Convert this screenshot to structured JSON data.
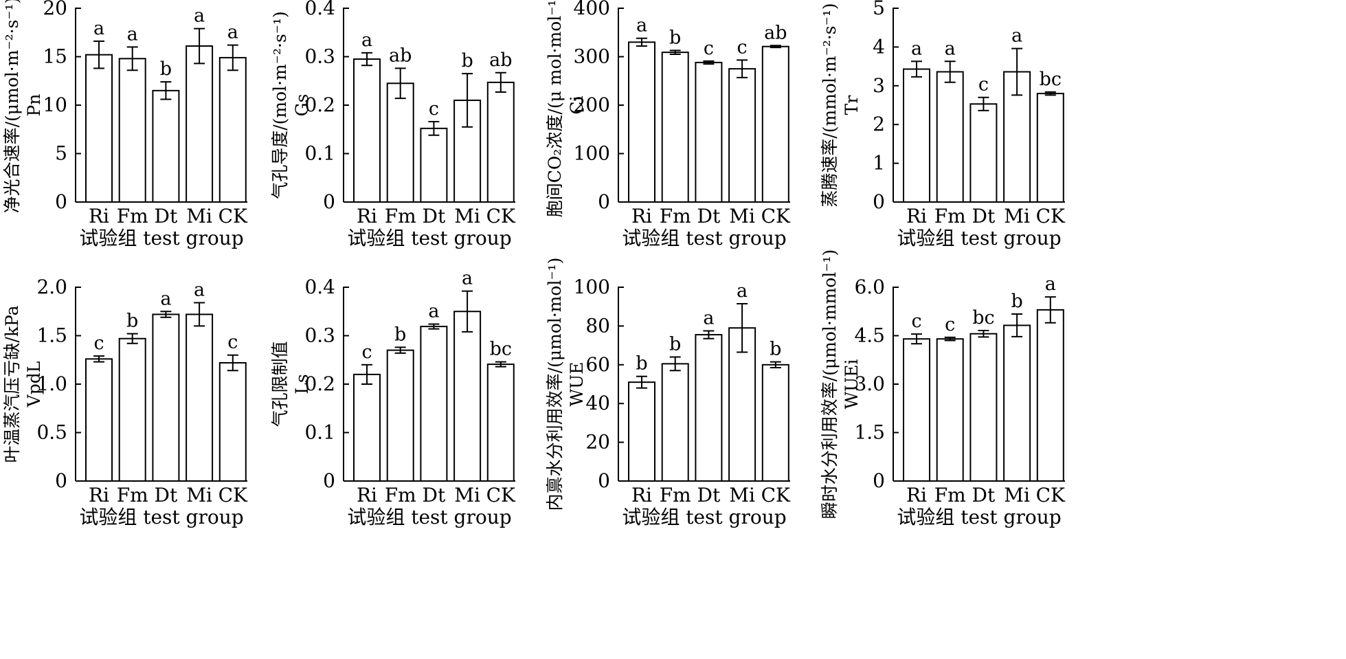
{
  "chart_data": [
    {
      "type": "bar",
      "categories": [
        "Ri",
        "Fm",
        "Dt",
        "Mi",
        "CK"
      ],
      "values": [
        15.2,
        14.8,
        11.5,
        16.1,
        14.9
      ],
      "errors": [
        1.4,
        1.2,
        0.9,
        1.8,
        1.3
      ],
      "letters": [
        "a",
        "a",
        "b",
        "a",
        "a"
      ],
      "ylim": [
        0,
        20
      ],
      "yticks": [
        "0",
        "5",
        "10",
        "15",
        "20"
      ],
      "xlabel": "试验组 test group",
      "ylabel": [
        "净光合速率/(μmol·m⁻²·s⁻¹)",
        "Pn"
      ]
    },
    {
      "type": "bar",
      "categories": [
        "Ri",
        "Fm",
        "Dt",
        "Mi",
        "CK"
      ],
      "values": [
        0.295,
        0.245,
        0.152,
        0.21,
        0.247
      ],
      "errors": [
        0.013,
        0.031,
        0.014,
        0.055,
        0.02
      ],
      "letters": [
        "a",
        "ab",
        "c",
        "b",
        "ab"
      ],
      "ylim": [
        0,
        0.4
      ],
      "yticks": [
        "0",
        "0.1",
        "0.2",
        "0.3",
        "0.4"
      ],
      "xlabel": "试验组 test group",
      "ylabel": [
        "气孔导度/(mol·m⁻²·s⁻¹)",
        "Gs"
      ]
    },
    {
      "type": "bar",
      "categories": [
        "Ri",
        "Fm",
        "Dt",
        "Mi",
        "CK"
      ],
      "values": [
        330,
        309,
        288,
        275,
        321
      ],
      "errors": [
        8,
        4,
        3,
        18,
        2
      ],
      "letters": [
        "a",
        "b",
        "c",
        "c",
        "ab"
      ],
      "ylim": [
        0,
        400
      ],
      "yticks": [
        "0",
        "100",
        "200",
        "300",
        "400"
      ],
      "xlabel": "试验组 test group",
      "ylabel": [
        "胞间CO₂浓度/(μ mol·mol⁻¹)",
        "Ci"
      ]
    },
    {
      "type": "bar",
      "categories": [
        "Ri",
        "Fm",
        "Dt",
        "Mi",
        "CK"
      ],
      "values": [
        3.43,
        3.36,
        2.53,
        3.36,
        2.8
      ],
      "errors": [
        0.2,
        0.27,
        0.17,
        0.6,
        0.04
      ],
      "letters": [
        "a",
        "a",
        "c",
        "a",
        "bc"
      ],
      "ylim": [
        0,
        5
      ],
      "yticks": [
        "0",
        "1",
        "2",
        "3",
        "4",
        "5"
      ],
      "xlabel": "试验组 test group",
      "ylabel": [
        "蒸腾速率/(mmol·m⁻²·s⁻¹)",
        "Tr"
      ]
    },
    {
      "type": "bar",
      "categories": [
        "Ri",
        "Fm",
        "Dt",
        "Mi",
        "CK"
      ],
      "values": [
        1.26,
        1.47,
        1.72,
        1.72,
        1.22
      ],
      "errors": [
        0.03,
        0.05,
        0.03,
        0.12,
        0.08
      ],
      "letters": [
        "c",
        "b",
        "a",
        "a",
        "c"
      ],
      "ylim": [
        0,
        2
      ],
      "yticks": [
        "0",
        "0.5",
        "1.0",
        "1.5",
        "2.0"
      ],
      "xlabel": "试验组 test group",
      "ylabel": [
        "叶温蒸汽压亏缺/kPa",
        "VpdL"
      ]
    },
    {
      "type": "bar",
      "categories": [
        "Ri",
        "Fm",
        "Dt",
        "Mi",
        "CK"
      ],
      "values": [
        0.22,
        0.27,
        0.319,
        0.35,
        0.241
      ],
      "errors": [
        0.02,
        0.006,
        0.005,
        0.042,
        0.005
      ],
      "letters": [
        "c",
        "b",
        "a",
        "a",
        "bc"
      ],
      "ylim": [
        0,
        0.4
      ],
      "yticks": [
        "0",
        "0.1",
        "0.2",
        "0.3",
        "0.4"
      ],
      "xlabel": "试验组 test group",
      "ylabel": [
        "气孔限制值",
        "Ls"
      ]
    },
    {
      "type": "bar",
      "categories": [
        "Ri",
        "Fm",
        "Dt",
        "Mi",
        "CK"
      ],
      "values": [
        51,
        60.5,
        75.5,
        79,
        60
      ],
      "errors": [
        3,
        3.5,
        2,
        12.5,
        1.5
      ],
      "letters": [
        "b",
        "b",
        "a",
        "a",
        "b"
      ],
      "ylim": [
        0,
        100
      ],
      "yticks": [
        "0",
        "20",
        "40",
        "60",
        "80",
        "100"
      ],
      "xlabel": "试验组 test group",
      "ylabel": [
        "内禀水分利用效率/(μmol·mol⁻¹)",
        "WUE"
      ]
    },
    {
      "type": "bar",
      "categories": [
        "Ri",
        "Fm",
        "Dt",
        "Mi",
        "CK"
      ],
      "values": [
        4.4,
        4.4,
        4.56,
        4.82,
        5.3
      ],
      "errors": [
        0.15,
        0.05,
        0.1,
        0.35,
        0.4
      ],
      "letters": [
        "c",
        "c",
        "bc",
        "b",
        "a"
      ],
      "ylim": [
        0,
        6
      ],
      "yticks": [
        "0",
        "1.5",
        "3.0",
        "4.5",
        "6.0"
      ],
      "xlabel": "试验组 test group",
      "ylabel": [
        "瞬时水分利用效率/(μmol·mmol⁻¹)",
        "WUEi"
      ]
    }
  ]
}
